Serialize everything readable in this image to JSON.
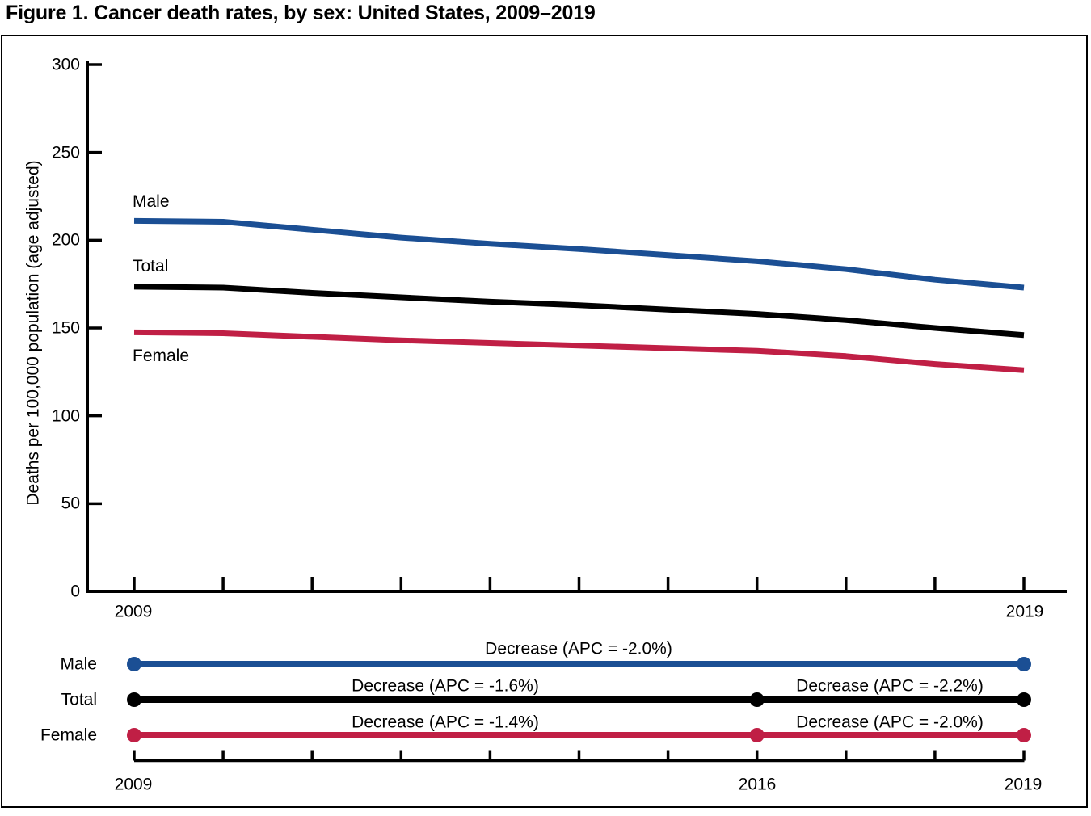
{
  "title": "Figure 1. Cancer death rates, by sex: United States, 2009–2019",
  "chart_data": [
    {
      "type": "line",
      "title": "Cancer death rates, by sex: United States, 2009–2019",
      "xlabel": "",
      "ylabel": "Deaths per 100,000 population (age adjusted)",
      "ylim": [
        0,
        300
      ],
      "yticks": [
        0,
        50,
        100,
        150,
        200,
        250,
        300
      ],
      "ytick_labels": [
        "300",
        "250",
        "200",
        "150",
        "100",
        "50",
        "0"
      ],
      "x": [
        2009,
        2010,
        2011,
        2012,
        2013,
        2014,
        2015,
        2016,
        2017,
        2018,
        2019
      ],
      "x_axis_labels": [
        "2009",
        "2019"
      ],
      "grid": false,
      "legend_position": "inline-labels",
      "series": [
        {
          "name": "Male",
          "color": "#1B4F94",
          "values": [
            211.0,
            210.5,
            206.0,
            201.5,
            198.0,
            195.0,
            191.5,
            188.0,
            183.5,
            177.5,
            173.0
          ]
        },
        {
          "name": "Total",
          "color": "#000000",
          "values": [
            173.5,
            173.0,
            170.0,
            167.5,
            165.0,
            163.0,
            160.5,
            158.0,
            154.5,
            150.0,
            146.0
          ]
        },
        {
          "name": "Female",
          "color": "#C01F45",
          "values": [
            147.5,
            147.0,
            145.0,
            143.0,
            141.5,
            140.0,
            138.5,
            137.0,
            134.0,
            129.5,
            126.0
          ]
        }
      ]
    },
    {
      "type": "line",
      "subtype": "apc-trend-segments",
      "axis_years": [
        2009,
        2010,
        2011,
        2012,
        2013,
        2014,
        2015,
        2016,
        2017,
        2018,
        2019
      ],
      "year_labels": [
        "2009",
        "2016",
        "2019"
      ],
      "rows": [
        {
          "name": "Male",
          "color": "#1B4F94",
          "segments": [
            {
              "start": 2009,
              "end": 2019,
              "label": "Decrease (APC = -2.0%)"
            }
          ]
        },
        {
          "name": "Total",
          "color": "#000000",
          "segments": [
            {
              "start": 2009,
              "end": 2016,
              "label": "Decrease (APC = -1.6%)"
            },
            {
              "start": 2016,
              "end": 2019,
              "label": "Decrease (APC = -2.2%)"
            }
          ]
        },
        {
          "name": "Female",
          "color": "#C01F45",
          "segments": [
            {
              "start": 2009,
              "end": 2016,
              "label": "Decrease (APC = -1.4%)"
            },
            {
              "start": 2016,
              "end": 2019,
              "label": "Decrease (APC = -2.0%)"
            }
          ]
        }
      ]
    }
  ]
}
